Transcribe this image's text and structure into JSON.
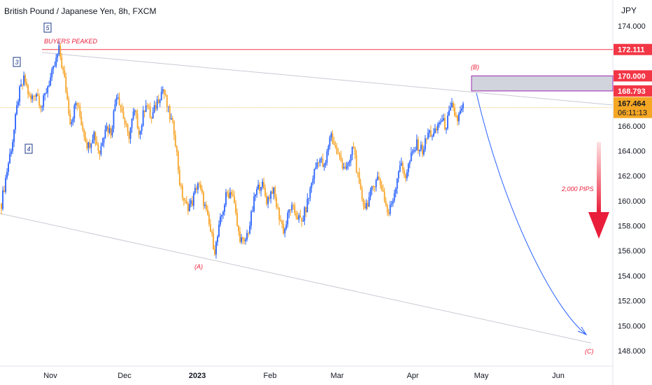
{
  "header": {
    "title": "British Pound / Japanese Yen, 8h, FXCM",
    "unit": "JPY"
  },
  "chart_data": {
    "type": "candlestick",
    "y_ticks": [
      "174.000",
      "172.000",
      "170.000",
      "168.000",
      "166.000",
      "164.000",
      "162.000",
      "160.000",
      "158.000",
      "156.000",
      "154.000",
      "152.000",
      "150.000",
      "148.000"
    ],
    "y_tick_values": [
      174,
      172,
      170,
      168,
      166,
      164,
      162,
      160,
      158,
      156,
      154,
      152,
      150,
      148
    ],
    "ylim": [
      147.2,
      176.3
    ],
    "x_ticks": [
      {
        "label": "Nov",
        "bold": false
      },
      {
        "label": "Dec",
        "bold": false
      },
      {
        "label": "2023",
        "bold": true
      },
      {
        "label": "Feb",
        "bold": false
      },
      {
        "label": "Mar",
        "bold": false
      },
      {
        "label": "Apr",
        "bold": false
      },
      {
        "label": "May",
        "bold": false
      },
      {
        "label": "Jun",
        "bold": false
      }
    ],
    "price_path": [
      159.8,
      162.5,
      165.0,
      168.5,
      169.8,
      168.0,
      168.8,
      167.5,
      169.2,
      170.4,
      172.1,
      169.5,
      166.2,
      168.0,
      166.0,
      164.3,
      165.5,
      163.8,
      166.0,
      165.5,
      168.8,
      167.0,
      165.0,
      167.2,
      165.4,
      168.0,
      166.5,
      168.0,
      169.0,
      167.0,
      165.5,
      161.0,
      159.5,
      159.8,
      161.5,
      160.0,
      158.0,
      156.0,
      158.5,
      160.5,
      160.8,
      157.5,
      156.4,
      158.0,
      160.5,
      161.5,
      160.0,
      161.0,
      159.0,
      157.5,
      159.5,
      159.0,
      158.2,
      159.8,
      162.0,
      163.5,
      162.5,
      165.5,
      164.0,
      163.0,
      162.5,
      164.5,
      161.0,
      159.5,
      160.5,
      162.0,
      161.0,
      158.8,
      160.5,
      163.0,
      162.0,
      163.5,
      164.5,
      164.0,
      165.5,
      165.2,
      166.5,
      166.0,
      167.5,
      166.5,
      167.5
    ],
    "levels": [
      {
        "label": "172.111",
        "value": 172.111,
        "kind": "line",
        "color": "#f23645"
      },
      {
        "label": "170.000",
        "value": 170.0,
        "kind": "zone-top",
        "color": "#f23645"
      },
      {
        "label": "168.793",
        "value": 168.793,
        "kind": "zone-bottom",
        "color": "#f23645"
      },
      {
        "label": "167.464",
        "value": 167.464,
        "kind": "current",
        "color": "#f5a623",
        "countdown": "06:11:13"
      }
    ],
    "annotations": {
      "buyers_peaked": "BUYERS PEAKED",
      "pips": "2,000 PIPS",
      "wave_a": "(A)",
      "wave_b": "(B)",
      "wave_c": "(C)",
      "wave_3": "3",
      "wave_4": "4",
      "wave_5": "5"
    },
    "colors": {
      "up": "#2962ff",
      "down": "#f7a325",
      "accent_red": "#e91e3a",
      "zone_fill": "#d1d4dc",
      "zone_border": "#9c27b0"
    }
  }
}
